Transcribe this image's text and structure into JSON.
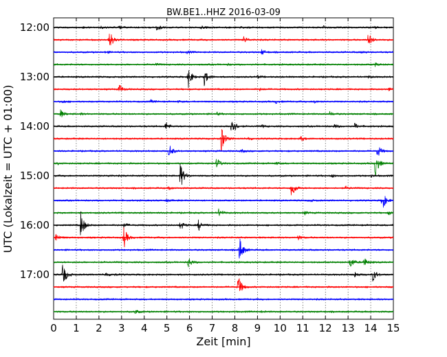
{
  "chart_data": {
    "type": "line",
    "title": "BW.BE1..HHZ 2016-03-09",
    "xlabel": "Zeit  [min]",
    "ylabel": "UTC (Lokalzeit = UTC + 01:00)",
    "xlim": [
      0,
      15
    ],
    "x_ticks": [
      "0",
      "1",
      "2",
      "3",
      "4",
      "5",
      "6",
      "7",
      "8",
      "9",
      "10",
      "11",
      "12",
      "13",
      "14",
      "15"
    ],
    "y_tick_labels": [
      "12:00",
      "13:00",
      "14:00",
      "15:00",
      "16:00",
      "17:00"
    ],
    "grid": "vertical dotted",
    "colors": [
      "#000000",
      "#ff0000",
      "#0000ff",
      "#008000"
    ],
    "traces": [
      {
        "start": "12:00",
        "color": "#000000",
        "events": [
          [
            1.25,
            0.05
          ],
          [
            2.1,
            0.06
          ],
          [
            2.9,
            0.08
          ],
          [
            4.55,
            0.3
          ],
          [
            6.5,
            0.1
          ],
          [
            8.2,
            0.06
          ],
          [
            11.9,
            0.12
          ],
          [
            14.2,
            0.05
          ]
        ]
      },
      {
        "start": "12:15",
        "color": "#ff0000",
        "events": [
          [
            2.45,
            0.8
          ],
          [
            8.4,
            0.25
          ],
          [
            13.9,
            0.55
          ]
        ]
      },
      {
        "start": "12:30",
        "color": "#0000ff",
        "events": [
          [
            2.3,
            0.08
          ],
          [
            5.9,
            0.1
          ],
          [
            9.2,
            0.2
          ],
          [
            13.6,
            0.08
          ]
        ]
      },
      {
        "start": "12:45",
        "color": "#008000",
        "events": [
          [
            4.5,
            0.08
          ],
          [
            7.7,
            0.05
          ],
          [
            14.2,
            0.12
          ]
        ]
      },
      {
        "start": "13:00",
        "color": "#000000",
        "events": [
          [
            5.95,
            0.75
          ],
          [
            6.65,
            0.6
          ],
          [
            9.0,
            0.1
          ],
          [
            13.9,
            0.08
          ]
        ]
      },
      {
        "start": "13:15",
        "color": "#ff0000",
        "events": [
          [
            2.9,
            0.35
          ],
          [
            9.1,
            0.08
          ],
          [
            14.8,
            0.1
          ]
        ]
      },
      {
        "start": "13:30",
        "color": "#0000ff",
        "events": [
          [
            0.4,
            0.1
          ],
          [
            4.3,
            0.1
          ],
          [
            5.5,
            0.05
          ],
          [
            9.8,
            0.12
          ],
          [
            11.5,
            0.15
          ]
        ]
      },
      {
        "start": "13:45",
        "color": "#008000",
        "events": [
          [
            0.3,
            0.3
          ],
          [
            1.2,
            0.05
          ],
          [
            7.2,
            0.1
          ],
          [
            12.2,
            0.15
          ]
        ]
      },
      {
        "start": "14:00",
        "color": "#000000",
        "events": [
          [
            4.95,
            0.3
          ],
          [
            7.85,
            1.0
          ],
          [
            9.2,
            0.1
          ],
          [
            12.4,
            0.15
          ],
          [
            13.3,
            0.2
          ]
        ]
      },
      {
        "start": "14:15",
        "color": "#ff0000",
        "events": [
          [
            7.4,
            1.0
          ],
          [
            8.6,
            0.1
          ],
          [
            10.9,
            0.2
          ]
        ]
      },
      {
        "start": "14:30",
        "color": "#0000ff",
        "events": [
          [
            5.1,
            0.55
          ],
          [
            8.3,
            0.1
          ],
          [
            14.3,
            0.5
          ]
        ]
      },
      {
        "start": "14:45",
        "color": "#008000",
        "events": [
          [
            0.2,
            0.05
          ],
          [
            7.2,
            0.4
          ],
          [
            9.8,
            0.1
          ],
          [
            14.2,
            1.0
          ]
        ]
      },
      {
        "start": "15:00",
        "color": "#000000",
        "events": [
          [
            2.4,
            0.05
          ],
          [
            5.6,
            1.0
          ],
          [
            12.3,
            0.1
          ],
          [
            14.0,
            0.08
          ]
        ]
      },
      {
        "start": "15:15",
        "color": "#ff0000",
        "events": [
          [
            5.1,
            0.1
          ],
          [
            10.5,
            0.8
          ],
          [
            12.9,
            0.1
          ]
        ]
      },
      {
        "start": "15:30",
        "color": "#0000ff",
        "events": [
          [
            5.0,
            0.1
          ],
          [
            11.3,
            0.1
          ],
          [
            14.5,
            0.8
          ]
        ]
      },
      {
        "start": "15:45",
        "color": "#008000",
        "events": [
          [
            7.3,
            0.3
          ],
          [
            11.1,
            0.1
          ],
          [
            14.8,
            0.15
          ]
        ]
      },
      {
        "start": "16:00",
        "color": "#000000",
        "events": [
          [
            1.2,
            1.0
          ],
          [
            3.1,
            0.2
          ],
          [
            5.6,
            0.35
          ],
          [
            6.4,
            0.4
          ]
        ]
      },
      {
        "start": "16:15",
        "color": "#ff0000",
        "events": [
          [
            0.1,
            0.3
          ],
          [
            3.1,
            0.8
          ],
          [
            10.8,
            0.15
          ]
        ]
      },
      {
        "start": "16:30",
        "color": "#0000ff",
        "events": [
          [
            8.2,
            1.0
          ]
        ]
      },
      {
        "start": "16:45",
        "color": "#008000",
        "events": [
          [
            5.95,
            0.4
          ],
          [
            13.1,
            0.45
          ],
          [
            13.7,
            0.35
          ]
        ]
      },
      {
        "start": "17:00",
        "color": "#000000",
        "events": [
          [
            0.4,
            1.0
          ],
          [
            2.3,
            0.15
          ],
          [
            2.6,
            0.1
          ],
          [
            13.3,
            0.2
          ],
          [
            14.1,
            0.5
          ]
        ]
      },
      {
        "start": "17:15",
        "color": "#ff0000",
        "events": [
          [
            8.15,
            0.9
          ],
          [
            14.9,
            0.05
          ]
        ]
      },
      {
        "start": "17:30",
        "color": "#0000ff",
        "events": []
      },
      {
        "start": "17:45",
        "color": "#008000",
        "events": [
          [
            3.6,
            0.15
          ],
          [
            9.2,
            0.05
          ]
        ]
      }
    ]
  }
}
